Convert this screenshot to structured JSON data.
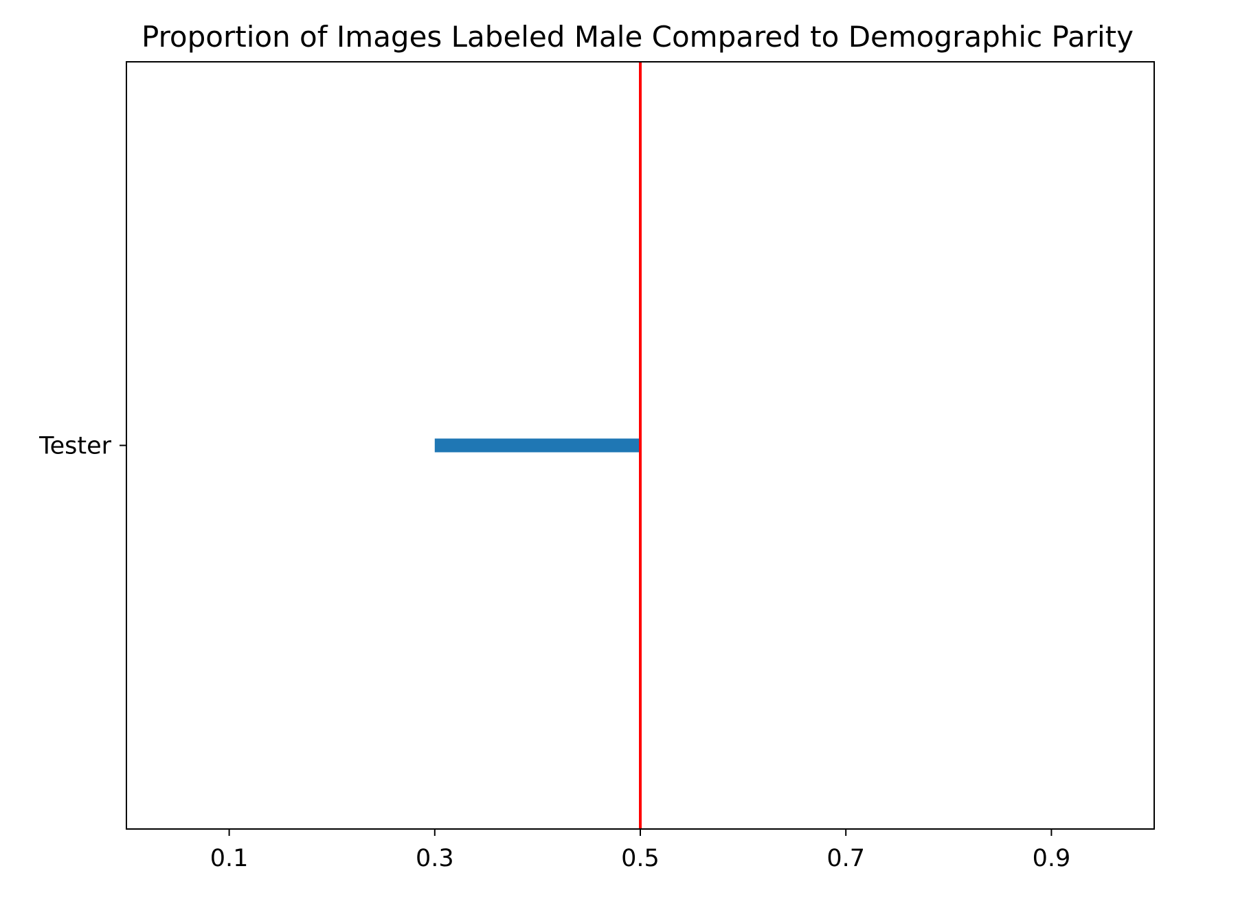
{
  "chart_data": {
    "type": "bar",
    "orientation": "horizontal",
    "title": "Proportion of Images Labeled Male Compared to Demographic Parity",
    "xlabel": "",
    "ylabel": "",
    "categories": [
      "Tester"
    ],
    "series": [
      {
        "segments": [
          {
            "category": "Tester",
            "start": 0.3,
            "end": 0.5
          }
        ]
      }
    ],
    "reference_line": {
      "axis": "x",
      "value": 0.5,
      "color": "#ff0000"
    },
    "xlim": [
      0.0,
      1.0
    ],
    "xticks": [
      0.1,
      0.3,
      0.5,
      0.7,
      0.9
    ],
    "xtick_labels": [
      "0.1",
      "0.3",
      "0.5",
      "0.7",
      "0.9"
    ],
    "grid": false,
    "colors": {
      "bar": "#1f77b4",
      "reference": "#ff0000",
      "axes": "#000000",
      "background": "#ffffff"
    }
  }
}
